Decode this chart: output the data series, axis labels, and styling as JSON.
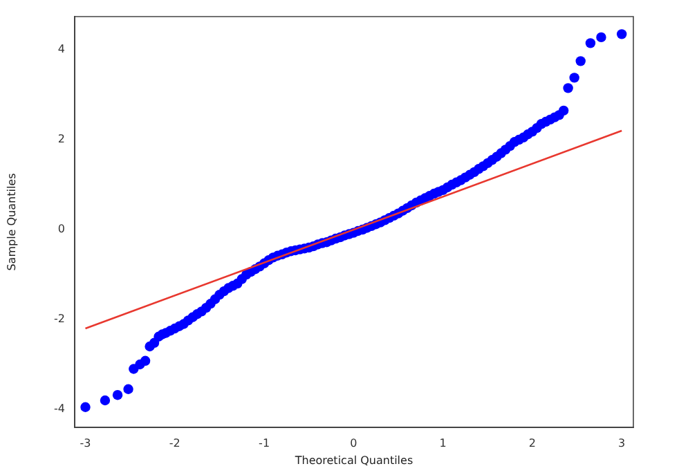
{
  "chart_data": {
    "type": "scatter",
    "xlabel": "Theoretical Quantiles",
    "ylabel": "Sample Quantiles",
    "xlim": [
      -3.12,
      3.13
    ],
    "ylim": [
      -4.4,
      4.74
    ],
    "xticks": [
      -3,
      -2,
      -1,
      0,
      1,
      2,
      3
    ],
    "yticks": [
      -4,
      -2,
      0,
      2,
      4
    ],
    "grid": false,
    "legend": false,
    "series": [
      {
        "color": "#0000ff",
        "marker": "circle",
        "x": [
          -3.0,
          -2.78,
          -2.64,
          -2.52,
          -2.46,
          -2.39,
          -2.33,
          -2.28,
          -2.23,
          -2.18,
          -2.14,
          -2.1,
          -2.05,
          -2.0,
          -1.95,
          -1.9,
          -1.85,
          -1.8,
          -1.75,
          -1.7,
          -1.65,
          -1.6,
          -1.55,
          -1.5,
          -1.45,
          -1.4,
          -1.35,
          -1.3,
          -1.25,
          -1.2,
          -1.15,
          -1.1,
          -1.05,
          -1.0,
          -0.95,
          -0.9,
          -0.85,
          -0.8,
          -0.75,
          -0.7,
          -0.65,
          -0.6,
          -0.55,
          -0.5,
          -0.45,
          -0.4,
          -0.35,
          -0.3,
          -0.25,
          -0.2,
          -0.15,
          -0.1,
          -0.05,
          0.0,
          0.05,
          0.1,
          0.15,
          0.2,
          0.25,
          0.3,
          0.35,
          0.4,
          0.45,
          0.5,
          0.55,
          0.6,
          0.65,
          0.7,
          0.75,
          0.8,
          0.85,
          0.9,
          0.95,
          1.0,
          1.05,
          1.1,
          1.15,
          1.2,
          1.25,
          1.3,
          1.35,
          1.4,
          1.45,
          1.5,
          1.55,
          1.6,
          1.65,
          1.7,
          1.75,
          1.8,
          1.85,
          1.9,
          1.95,
          2.0,
          2.05,
          2.1,
          2.15,
          2.2,
          2.25,
          2.3,
          2.35,
          2.4,
          2.47,
          2.54,
          2.65,
          2.77,
          3.0
        ],
        "values": [
          -3.95,
          -3.8,
          -3.68,
          -3.55,
          -3.1,
          -3.0,
          -2.92,
          -2.6,
          -2.52,
          -2.38,
          -2.33,
          -2.3,
          -2.25,
          -2.2,
          -2.15,
          -2.1,
          -2.02,
          -1.95,
          -1.88,
          -1.82,
          -1.74,
          -1.65,
          -1.55,
          -1.45,
          -1.37,
          -1.3,
          -1.25,
          -1.2,
          -1.1,
          -1.0,
          -0.94,
          -0.88,
          -0.82,
          -0.75,
          -0.68,
          -0.62,
          -0.58,
          -0.55,
          -0.51,
          -0.48,
          -0.46,
          -0.44,
          -0.42,
          -0.4,
          -0.37,
          -0.33,
          -0.3,
          -0.28,
          -0.24,
          -0.2,
          -0.17,
          -0.13,
          -0.1,
          -0.07,
          -0.03,
          0.0,
          0.04,
          0.08,
          0.12,
          0.16,
          0.21,
          0.26,
          0.31,
          0.36,
          0.42,
          0.48,
          0.54,
          0.6,
          0.65,
          0.7,
          0.75,
          0.8,
          0.84,
          0.88,
          0.94,
          1.0,
          1.05,
          1.1,
          1.16,
          1.22,
          1.28,
          1.35,
          1.41,
          1.48,
          1.55,
          1.62,
          1.7,
          1.78,
          1.86,
          1.95,
          2.0,
          2.05,
          2.12,
          2.18,
          2.26,
          2.35,
          2.4,
          2.45,
          2.5,
          2.55,
          2.65,
          3.15,
          3.38,
          3.75,
          4.15,
          4.28,
          4.35
        ]
      },
      {
        "type": "line",
        "color": "#e8382f",
        "marker": "none",
        "line_style": "solid",
        "x": [
          -3.0,
          3.0
        ],
        "values": [
          -2.2,
          2.2
        ]
      }
    ]
  }
}
